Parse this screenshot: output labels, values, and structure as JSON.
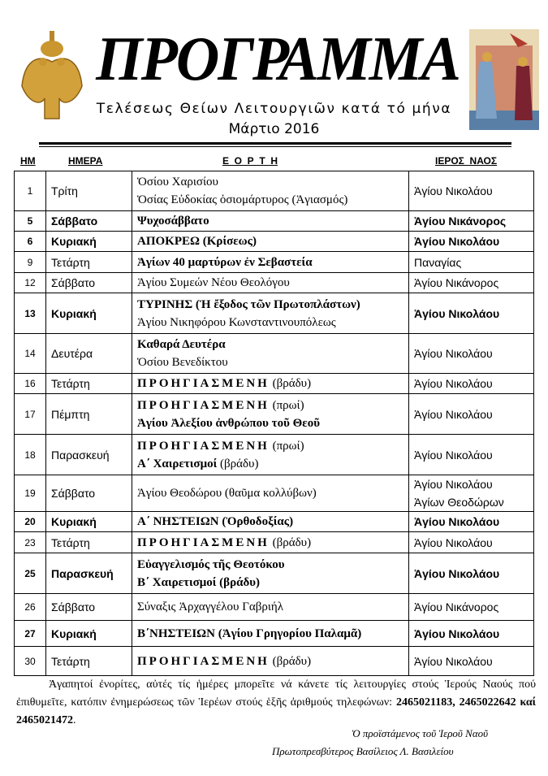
{
  "header": {
    "title": "ΠΡΟΓΡΑΜΜΑ",
    "subtitle": "Τελέσεως Θείων Λειτουργιῶν κατά τό μήνα",
    "month": "Μάρτιο  2016"
  },
  "columns": {
    "num": "ΗΜ",
    "day": "ΗΜΕΡΑ",
    "feast": "Ε  Ο  Ρ  Τ  Η",
    "naos": "ΙΕΡΟΣ  ΝΑΟΣ"
  },
  "rows": [
    {
      "num": "1",
      "day": "Τρίτη",
      "bold": false,
      "feast": [
        {
          "t": "Ὁσίου Χαρισίου",
          "s": ""
        },
        {
          "t": "Ὁσίας Εὐδοκίας ὁσιομάρτυρος (Ἁγιασμός)",
          "s": ""
        }
      ],
      "naos": [
        "Ἁγίου Νικολάου"
      ]
    },
    {
      "num": "5",
      "day": "Σάββατο",
      "bold": true,
      "feast": [
        {
          "t": "Ψυχοσάββατο",
          "s": "b"
        }
      ],
      "naos": [
        "Ἁγίου Νικάνορος"
      ]
    },
    {
      "num": "6",
      "day": "Κυριακή",
      "bold": true,
      "feast": [
        {
          "t": "ΑΠΟΚΡΕΩ (Κρίσεως)",
          "s": "b"
        }
      ],
      "naos": [
        "Ἁγίου Νικολάου"
      ]
    },
    {
      "num": "9",
      "day": "Τετάρτη",
      "bold": false,
      "feast": [
        {
          "t": "Ἁγίων 40 μαρτύρων ἐν Σεβαστεία",
          "s": "b"
        }
      ],
      "naos": [
        "Παναγίας"
      ]
    },
    {
      "num": "12",
      "day": "Σάββατο",
      "bold": false,
      "feast": [
        {
          "t": "Ἁγίου Συμεών Νέου Θεολόγου",
          "s": ""
        }
      ],
      "naos": [
        "Ἁγίου Νικάνορος"
      ]
    },
    {
      "num": "13",
      "day": "Κυριακή",
      "bold": true,
      "feast": [
        {
          "t": "ΤΥΡΙΝΗΣ (Ἡ ἔξοδος τῶν Πρωτοπλάστων)",
          "s": "b"
        },
        {
          "t": "Ἁγίου Νικηφόρου Κωνσταντινουπόλεως",
          "s": ""
        }
      ],
      "naos": [
        "Ἁγίου Νικολάου"
      ]
    },
    {
      "num": "14",
      "day": "Δευτέρα",
      "bold": false,
      "feast": [
        {
          "t": "Καθαρά Δευτέρα",
          "s": "b"
        },
        {
          "t": "Ὁσίου Βενεδίκτου",
          "s": ""
        }
      ],
      "naos": [
        "Ἁγίου Νικολάου"
      ]
    },
    {
      "num": "16",
      "day": "Τετάρτη",
      "bold": false,
      "feast": [
        {
          "t": "ΠΡΟΗΓΙΑΣΜΕΝΗ",
          "s": "sp",
          "x": " (βράδυ)"
        }
      ],
      "naos": [
        "Ἁγίου Νικολάου"
      ]
    },
    {
      "num": "17",
      "day": "Πέμπτη",
      "bold": false,
      "feast": [
        {
          "t": "ΠΡΟΗΓΙΑΣΜΕΝΗ",
          "s": "sp",
          "x": " (πρωί)"
        },
        {
          "t": "Ἁγίου Ἀλεξίου ἀνθρώπου τοῦ Θεοῦ",
          "s": "b"
        }
      ],
      "naos": [
        "Ἁγίου Νικολάου"
      ]
    },
    {
      "num": "18",
      "day": "Παρασκευή",
      "bold": false,
      "feast": [
        {
          "t": "ΠΡΟΗΓΙΑΣΜΕΝΗ",
          "s": "sp",
          "x": " (πρωί)"
        },
        {
          "t": "Α΄ Χαιρετισμοί",
          "s": "b",
          "x": " (βράδυ)"
        }
      ],
      "naos": [
        "Ἁγίου Νικολάου"
      ]
    },
    {
      "num": "19",
      "day": "Σάββατο",
      "bold": false,
      "feast": [
        {
          "t": "Ἁγίου Θεοδώρου (θαῦμα κολλύβων)",
          "s": ""
        }
      ],
      "naos": [
        "Ἁγίου Νικολάου",
        "Ἁγίων Θεοδώρων"
      ]
    },
    {
      "num": "20",
      "day": "Κυριακή",
      "bold": true,
      "feast": [
        {
          "t": "Α΄ ΝΗΣΤΕΙΩΝ (Ὀρθοδοξίας)",
          "s": "b"
        }
      ],
      "naos": [
        "Ἁγίου Νικολάου"
      ]
    },
    {
      "num": "23",
      "day": "Τετάρτη",
      "bold": false,
      "feast": [
        {
          "t": "ΠΡΟΗΓΙΑΣΜΕΝΗ",
          "s": "sp",
          "x": " (βράδυ)"
        }
      ],
      "naos": [
        "Ἁγίου Νικολάου"
      ]
    },
    {
      "num": "25",
      "day": "Παρασκευή",
      "bold": true,
      "feast": [
        {
          "t": "Εὐαγγελισμός τῆς Θεοτόκου",
          "s": "b"
        },
        {
          "t": "Β΄ Χαιρετισμοί (βράδυ)",
          "s": "b"
        }
      ],
      "naos": [
        "Ἁγίου Νικολάου"
      ]
    },
    {
      "num": "26",
      "day": "Σάββατο",
      "bold": false,
      "feast": [
        {
          "t": "Σύναξις Ἀρχαγγέλου Γαβριήλ",
          "s": ""
        }
      ],
      "naos": [
        "Ἁγίου Νικάνορος"
      ]
    },
    {
      "num": "27",
      "day": "Κυριακή",
      "bold": true,
      "feast": [
        {
          "t": "Β΄ΝΗΣΤΕΙΩΝ (Ἁγίου Γρηγορίου Παλαμᾶ)",
          "s": "b"
        }
      ],
      "naos": [
        "Ἁγίου Νικολάου"
      ]
    },
    {
      "num": "30",
      "day": "Τετάρτη",
      "bold": false,
      "feast": [
        {
          "t": "ΠΡΟΗΓΙΑΣΜΕΝΗ",
          "s": "sp",
          "x": " (βράδυ)"
        }
      ],
      "naos": [
        "Ἁγίου Νικολάου"
      ]
    }
  ],
  "notice": {
    "text": "Ἀγαπητοί ἐνορίτες, αὐτές τίς ἡμέρες μπορεῖτε νά κάνετε τίς λειτουργίες στούς Ἱερούς Ναούς πού ἐπιθυμεῖτε, κατόπιν ἐνημερώσεως τῶν Ἱερέων στούς ἑξῆς ἀριθμούς τηλεφώνων: ",
    "phone1": "2465021183,",
    "phone2": "2465022642 καί 2465021472",
    "end": "."
  },
  "signature": {
    "line1": "Ὁ προϊστάμενος τοῦ Ἱεροῦ Ναοῦ",
    "line2": "Πρωτοπρεσβύτερος Βασίλειος Λ. Βασιλείου"
  }
}
